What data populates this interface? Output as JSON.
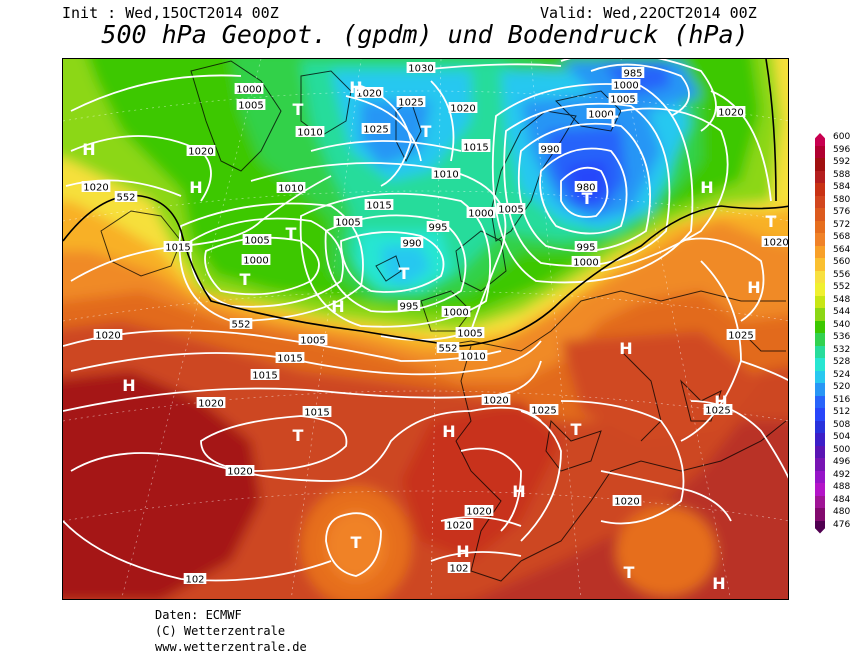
{
  "header": {
    "init": "Init : Wed,15OCT2014 00Z",
    "valid": "Valid: Wed,22OCT2014 00Z",
    "title": "500 hPa Geopot. (gpdm) und Bodendruck (hPa)"
  },
  "legend": {
    "levels": [
      "600",
      "596",
      "592",
      "588",
      "584",
      "580",
      "576",
      "572",
      "568",
      "564",
      "560",
      "556",
      "552",
      "548",
      "544",
      "540",
      "536",
      "532",
      "528",
      "524",
      "520",
      "516",
      "512",
      "508",
      "504",
      "500",
      "496",
      "492",
      "488",
      "484",
      "480",
      "476"
    ],
    "colors": [
      "#c80050",
      "#b00030",
      "#a01010",
      "#b41e1e",
      "#c83214",
      "#d2461e",
      "#dc5a1e",
      "#e66e1e",
      "#f08228",
      "#f8a028",
      "#fac030",
      "#f8e040",
      "#f0f030",
      "#c8e614",
      "#8cd714",
      "#3cc800",
      "#32d250",
      "#28dc9b",
      "#28e6d2",
      "#28c8f0",
      "#2896f5",
      "#2864fa",
      "#2846fa",
      "#2832dc",
      "#3c1ec8",
      "#5a14b4",
      "#7814b4",
      "#9614c8",
      "#b414c8",
      "#a01496",
      "#820a6e",
      "#500050"
    ]
  },
  "map": {
    "pressure_labels": [
      "1030",
      "1000",
      "985",
      "1000",
      "1005",
      "1020",
      "1005",
      "1025",
      "1020",
      "1000",
      "1010",
      "1025",
      "1020",
      "1020",
      "1010",
      "990",
      "1015",
      "1010",
      "1020",
      "980",
      "552",
      "1010",
      "1015",
      "1000",
      "1005",
      "1015",
      "1005",
      "995",
      "1005",
      "990",
      "995",
      "1000",
      "1020",
      "1000",
      "995",
      "1025",
      "552",
      "1005",
      "1000",
      "1005",
      "552",
      "1010",
      "1020",
      "1015",
      "1015",
      "1020",
      "1020",
      "1025",
      "1025",
      "1015",
      "1020",
      "1020",
      "1020",
      "1020",
      "102",
      "102"
    ],
    "pressure_centers": [
      "H",
      "H",
      "T",
      "T",
      "T",
      "H",
      "H",
      "T",
      "T",
      "T",
      "H",
      "T",
      "T",
      "H",
      "T",
      "H",
      "H",
      "H",
      "T",
      "H",
      "H",
      "H",
      "T",
      "T",
      "H"
    ],
    "accent_contour_color": "#000000",
    "isobar_color": "#ffffff"
  },
  "footer": {
    "line1": "Daten: ECMWF",
    "line2": "(C) Wetterzentrale",
    "line3": "www.wetterzentrale.de"
  }
}
